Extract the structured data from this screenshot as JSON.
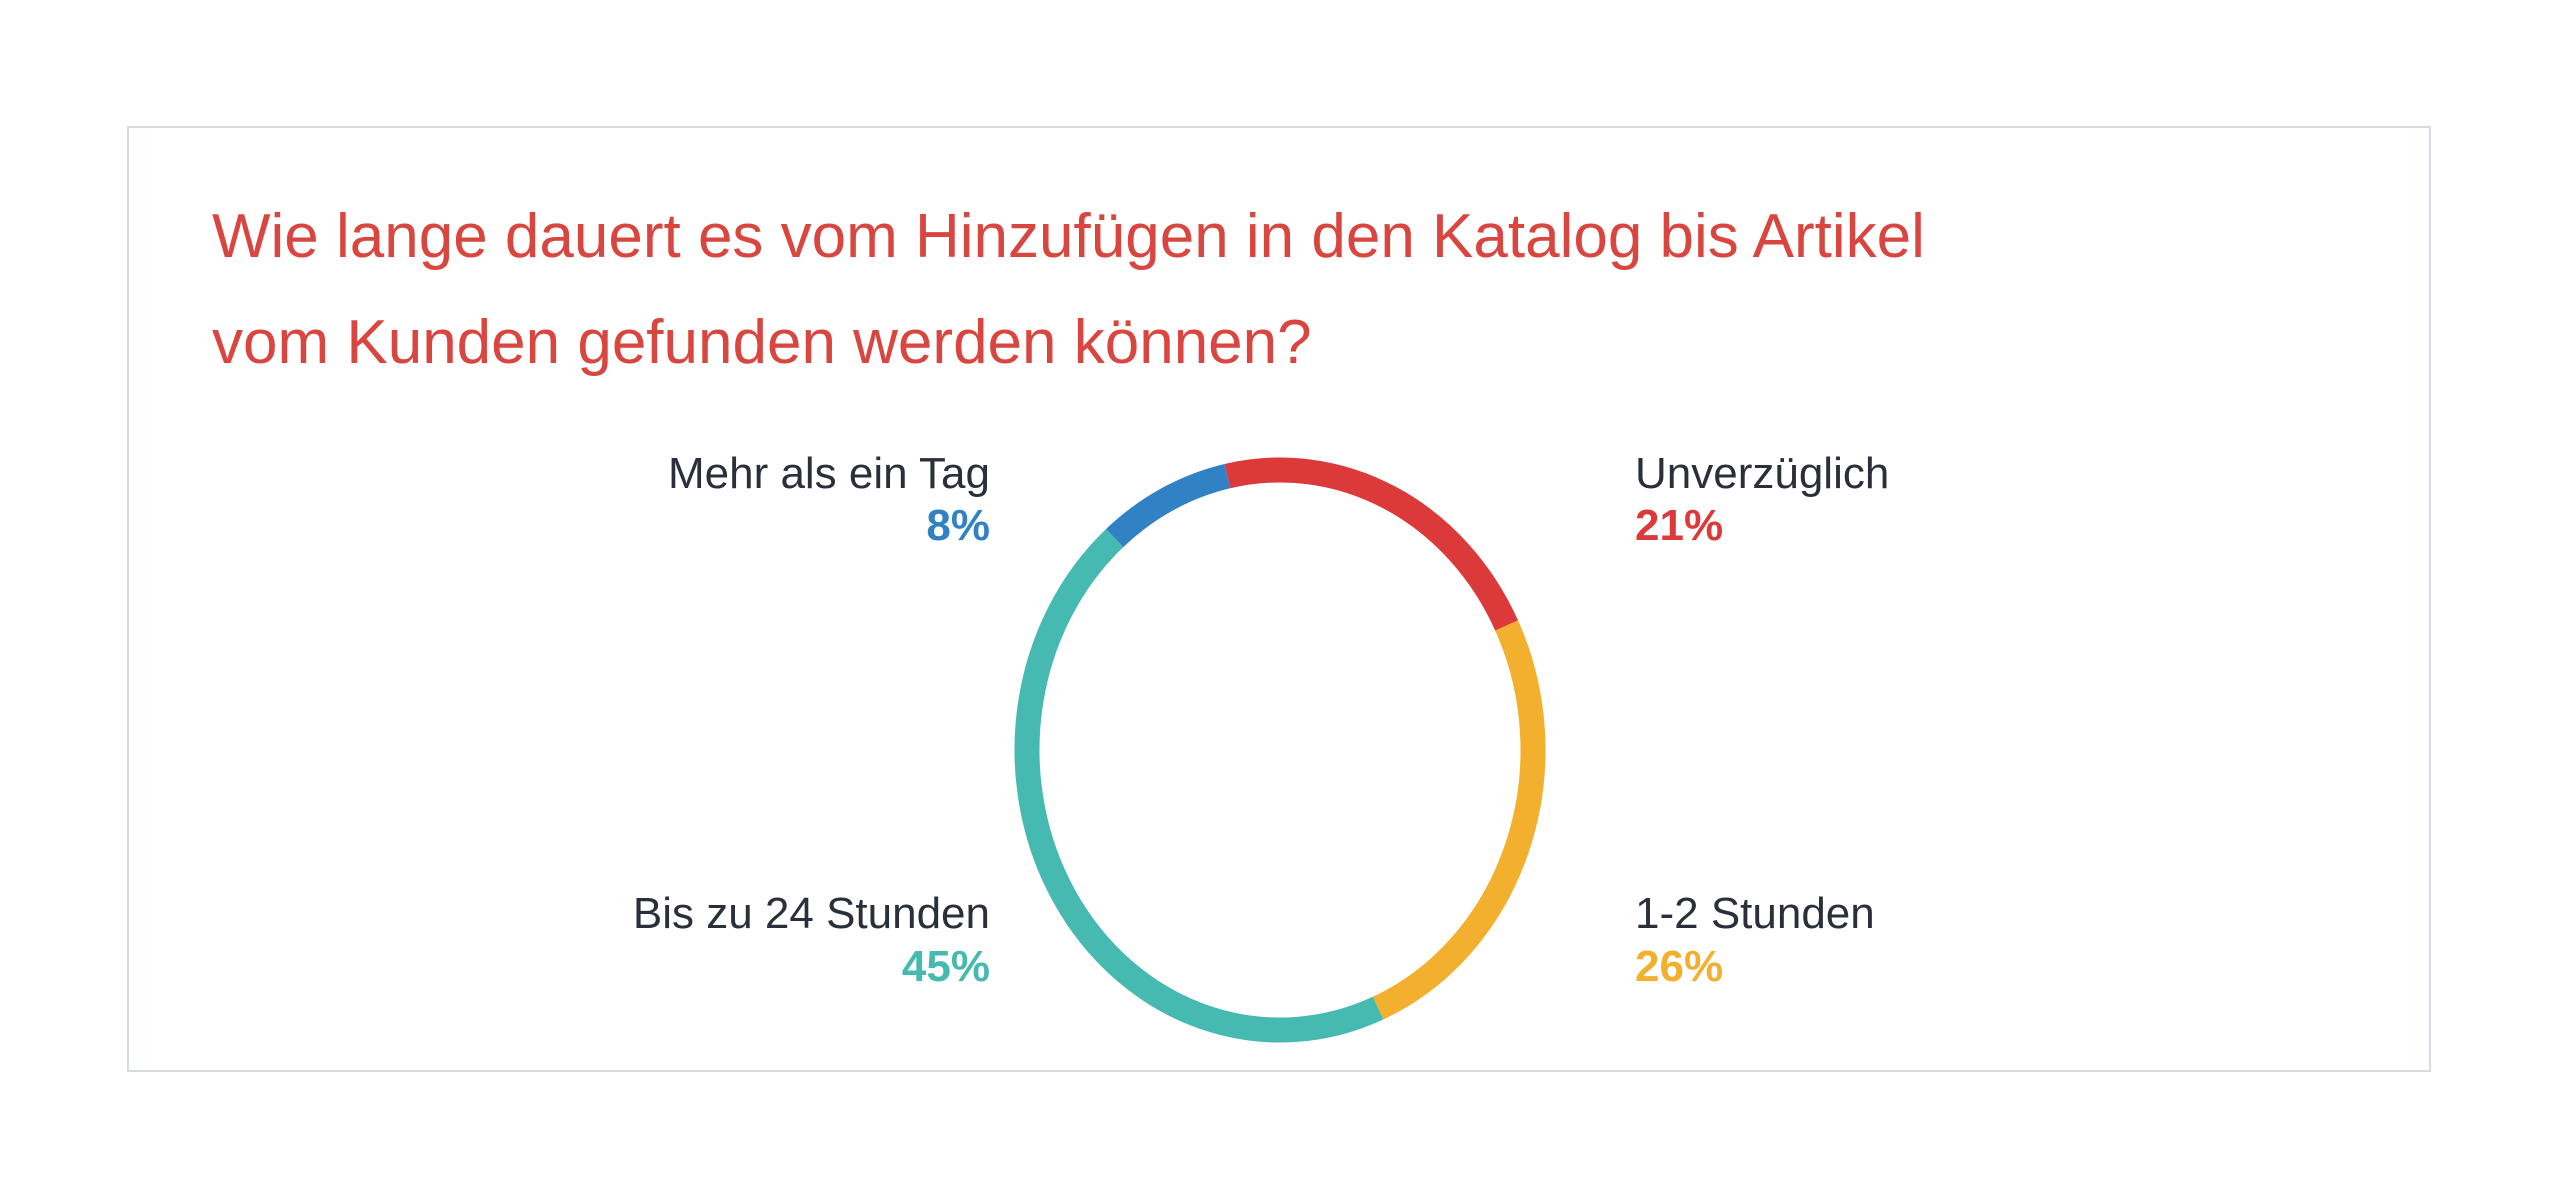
{
  "chart_data": {
    "type": "pie",
    "variant": "donut",
    "title": "Wie lange dauert es vom Hinzufügen in den Katalog bis Artikel vom Kunden gefunden werden können?",
    "title_lines": [
      "Wie lange dauert es vom Hinzufügen in den Katalog bis Artikel",
      "vom Kunden gefunden werden können?"
    ],
    "slices": [
      {
        "label": "Unverzüglich",
        "value": 21,
        "value_label": "21%",
        "color": "#dc3a3a"
      },
      {
        "label": "1-2 Stunden",
        "value": 26,
        "value_label": "26%",
        "color": "#f2b02e"
      },
      {
        "label": "Bis zu 24 Stunden",
        "value": 45,
        "value_label": "45%",
        "color": "#46b9b0"
      },
      {
        "label": "Mehr als ein Tag",
        "value": 8,
        "value_label": "8%",
        "color": "#3182c4"
      }
    ],
    "legend": "labels-around-chart",
    "title_color": "#d9463f"
  }
}
